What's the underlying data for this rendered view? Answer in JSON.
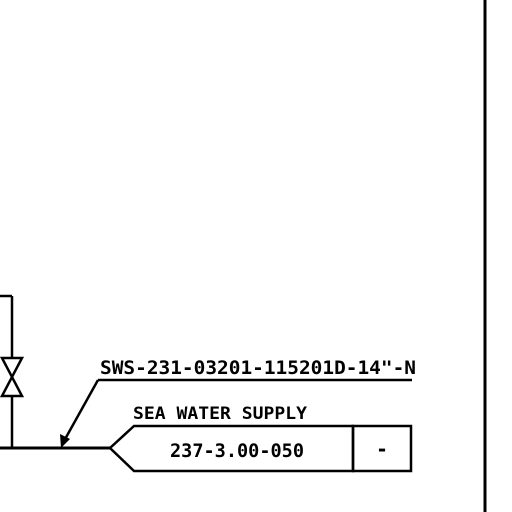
{
  "drawing": {
    "line_number": "SWS-231-03201-115201D-14\"-N",
    "service": "SEA WATER SUPPLY",
    "sheet_reference": "237-3.00-050",
    "continuation_id": "-"
  },
  "colors": {
    "background": "#ffffff",
    "linework": "#000000"
  },
  "symbols": {
    "valve": "gate-valve-icon",
    "off_page_connector": "off-page-connector-arrow",
    "leader_arrow": "leader-arrow-icon"
  }
}
